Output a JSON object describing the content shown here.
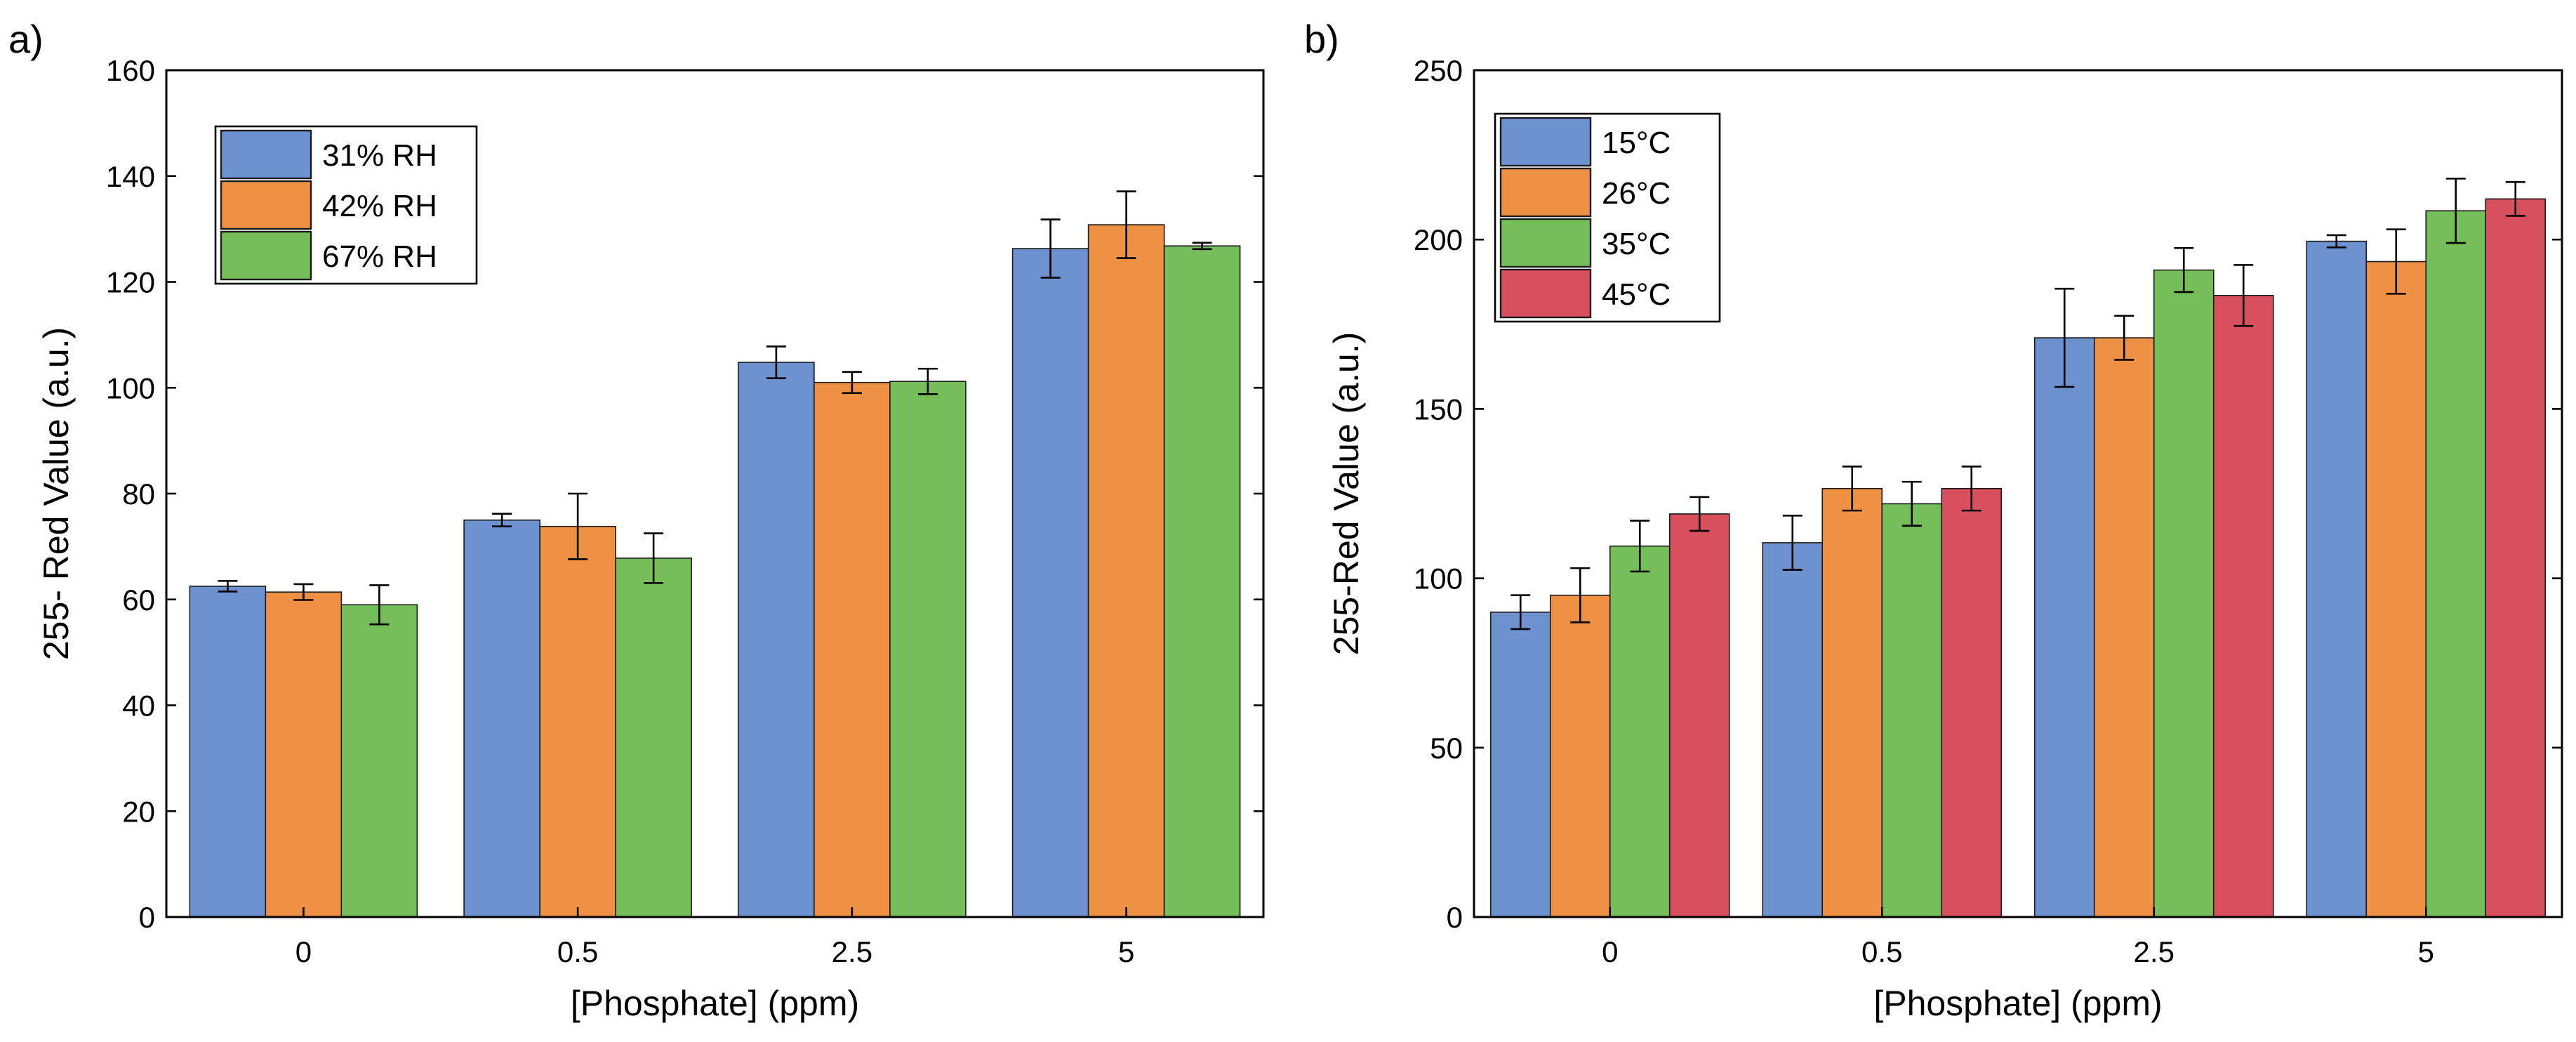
{
  "figure": {
    "panel_labels": [
      "a)",
      "b)"
    ]
  },
  "chart_data": [
    {
      "type": "bar",
      "panel_label": "a)",
      "title": "",
      "xlabel": "[Phosphate] (ppm)",
      "ylabel": "255- Red Value (a.u.)",
      "ylim": [
        0,
        160
      ],
      "yticks": [
        0,
        20,
        40,
        60,
        80,
        100,
        120,
        140,
        160
      ],
      "categories": [
        "0",
        "0.5",
        "2.5",
        "5"
      ],
      "grid": false,
      "legend_position": "top-left",
      "series": [
        {
          "name": "31% RH",
          "color": "#6E92D0",
          "values": [
            62.5,
            75,
            104.8,
            126.3
          ],
          "errors": [
            1,
            1.2,
            3,
            5.5
          ]
        },
        {
          "name": "42% RH",
          "color": "#EE9145",
          "values": [
            61.4,
            73.8,
            101,
            130.8
          ],
          "errors": [
            1.5,
            6.2,
            2,
            6.3
          ]
        },
        {
          "name": "67% RH",
          "color": "#76BE59",
          "values": [
            59,
            67.8,
            101.2,
            126.8
          ],
          "errors": [
            3.7,
            4.7,
            2.4,
            0.6
          ]
        }
      ]
    },
    {
      "type": "bar",
      "panel_label": "b)",
      "title": "",
      "xlabel": "[Phosphate] (ppm)",
      "ylabel": "255-Red Value (a.u.)",
      "ylim": [
        0,
        250
      ],
      "yticks": [
        0,
        50,
        100,
        150,
        200,
        250
      ],
      "categories": [
        "0",
        "0.5",
        "2.5",
        "5"
      ],
      "grid": false,
      "legend_position": "top-left",
      "series": [
        {
          "name": "15°C",
          "color": "#6E92D0",
          "values": [
            90,
            110.5,
            171,
            199.5
          ],
          "errors": [
            5,
            8,
            14.5,
            1.8
          ]
        },
        {
          "name": "26°C",
          "color": "#EE9145",
          "values": [
            95,
            126.5,
            171,
            193.5
          ],
          "errors": [
            8,
            6.5,
            6.5,
            9.5
          ]
        },
        {
          "name": "35°C",
          "color": "#76BE59",
          "values": [
            109.5,
            122,
            191,
            208.5
          ],
          "errors": [
            7.5,
            6.5,
            6.5,
            9.5
          ]
        },
        {
          "name": "45°C",
          "color": "#D8505E",
          "values": [
            119,
            126.5,
            183.5,
            212
          ],
          "errors": [
            5,
            6.5,
            9,
            5
          ]
        }
      ]
    }
  ]
}
